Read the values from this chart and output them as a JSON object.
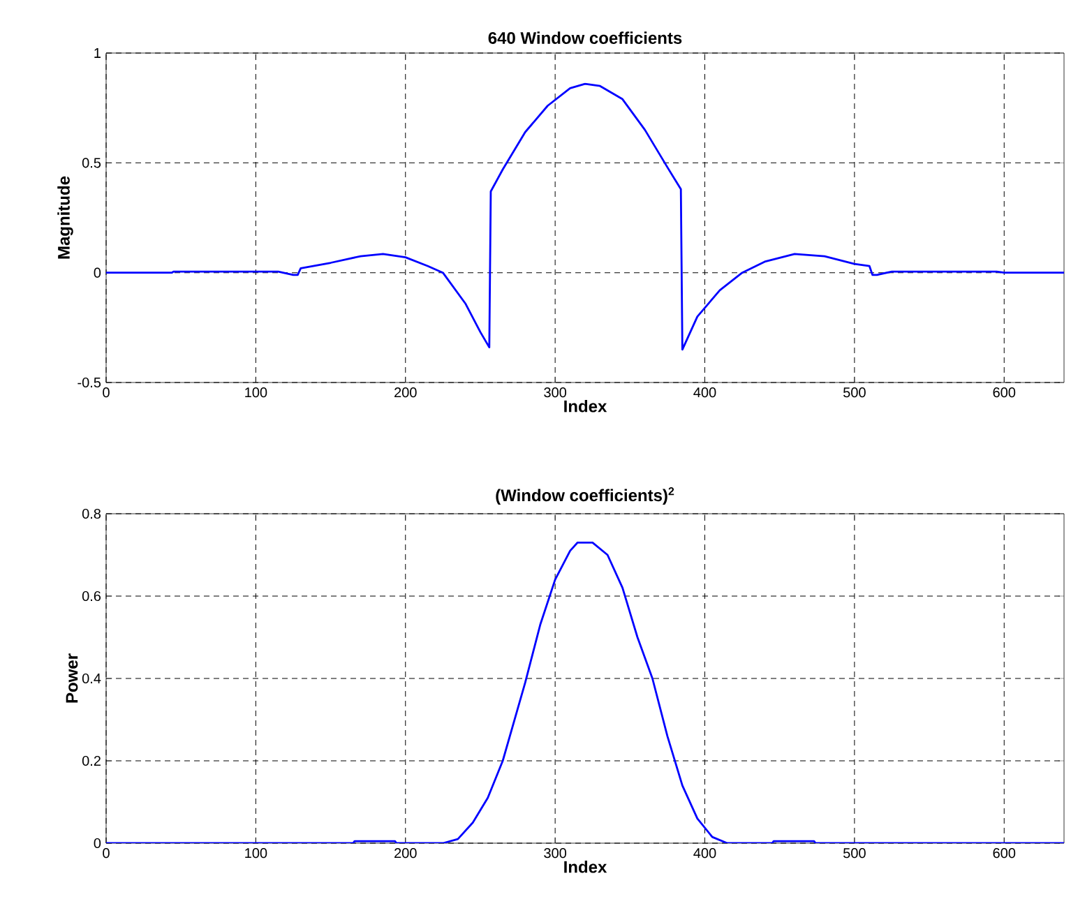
{
  "chart_data": [
    {
      "type": "line",
      "title": "640 Window coefficients",
      "xlabel": "Index",
      "ylabel": "Magnitude",
      "x": [
        0,
        44,
        45,
        115,
        125,
        128,
        130,
        150,
        170,
        185,
        200,
        215,
        225,
        240,
        250,
        256,
        257,
        265,
        280,
        295,
        310,
        320,
        330,
        345,
        360,
        375,
        384,
        385,
        395,
        410,
        425,
        440,
        460,
        480,
        500,
        510,
        512,
        515,
        525,
        595,
        600,
        640
      ],
      "series": [
        {
          "color": "#0000ff",
          "values": [
            0,
            0,
            0.005,
            0.005,
            -0.01,
            -0.01,
            0.02,
            0.045,
            0.075,
            0.085,
            0.07,
            0.03,
            0,
            -0.14,
            -0.27,
            -0.34,
            0.37,
            0.47,
            0.64,
            0.76,
            0.84,
            0.86,
            0.85,
            0.79,
            0.65,
            0.48,
            0.38,
            -0.35,
            -0.2,
            -0.08,
            0,
            0.05,
            0.085,
            0.075,
            0.04,
            0.03,
            -0.01,
            -0.01,
            0.005,
            0.005,
            0,
            0
          ]
        }
      ],
      "xlim": [
        0,
        640
      ],
      "ylim": [
        -0.5,
        1
      ],
      "xticks": [
        0,
        100,
        200,
        300,
        400,
        500,
        600
      ],
      "yticks": [
        -0.5,
        0,
        0.5,
        1
      ],
      "grid": true
    },
    {
      "type": "line",
      "title": "(Window coefficients)$^{2}$",
      "xlabel": "Index",
      "ylabel": "Power",
      "x": [
        0,
        165,
        166,
        193,
        194,
        225,
        235,
        245,
        255,
        265,
        280,
        290,
        300,
        310,
        315,
        325,
        335,
        345,
        355,
        365,
        375,
        385,
        395,
        405,
        415,
        445,
        446,
        473,
        474,
        640
      ],
      "series": [
        {
          "color": "#0000ff",
          "values": [
            0,
            0,
            0.005,
            0.005,
            0,
            0,
            0.01,
            0.05,
            0.11,
            0.2,
            0.39,
            0.53,
            0.64,
            0.71,
            0.73,
            0.73,
            0.7,
            0.62,
            0.5,
            0.4,
            0.26,
            0.14,
            0.06,
            0.015,
            0,
            0,
            0.005,
            0.005,
            0,
            0
          ]
        }
      ],
      "xlim": [
        0,
        640
      ],
      "ylim": [
        0,
        0.8
      ],
      "xticks": [
        0,
        100,
        200,
        300,
        400,
        500,
        600
      ],
      "yticks": [
        0,
        0.2,
        0.4,
        0.6,
        0.8
      ],
      "grid": true
    }
  ]
}
